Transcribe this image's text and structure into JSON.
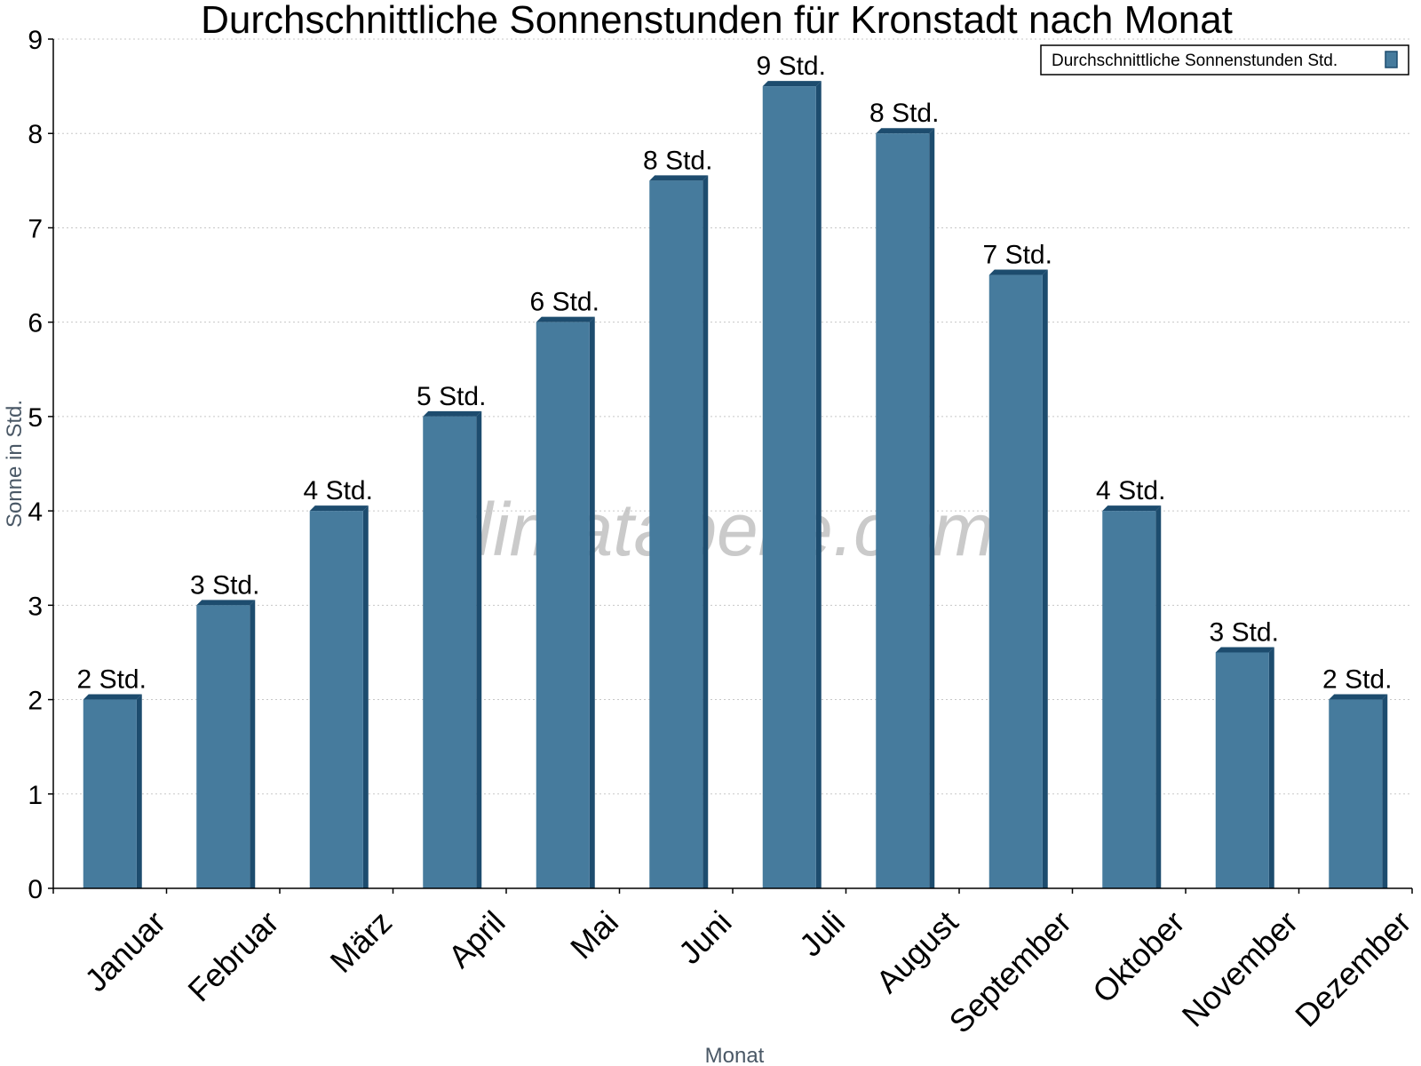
{
  "chart_data": {
    "type": "bar",
    "title": "Durchschnittliche Sonnenstunden für Kronstadt nach Monat",
    "xlabel": "Monat",
    "ylabel": "Sonne in Std.",
    "ylim": [
      0,
      9
    ],
    "yticks": [
      "0",
      "1",
      "2",
      "3",
      "4",
      "5",
      "6",
      "7",
      "8",
      "9"
    ],
    "grid": true,
    "legend_position": "top-right",
    "categories": [
      "Januar",
      "Februar",
      "März",
      "April",
      "Mai",
      "Juni",
      "Juli",
      "August",
      "September",
      "Oktober",
      "November",
      "Dezember"
    ],
    "series": [
      {
        "name": "Durchschnittliche Sonnenstunden Std.",
        "values": [
          2,
          3,
          4,
          5,
          6,
          7.5,
          8.5,
          8,
          6.5,
          4,
          2.5,
          2
        ],
        "labels": [
          "2 Std.",
          "3 Std.",
          "4 Std.",
          "5 Std.",
          "6 Std.",
          "8 Std.",
          "9 Std.",
          "8 Std.",
          "7 Std.",
          "4 Std.",
          "3 Std.",
          "2 Std."
        ],
        "color": "#467b9d",
        "edge_color": "#1d4c6e"
      }
    ],
    "watermark": "klimatabelle.com"
  }
}
